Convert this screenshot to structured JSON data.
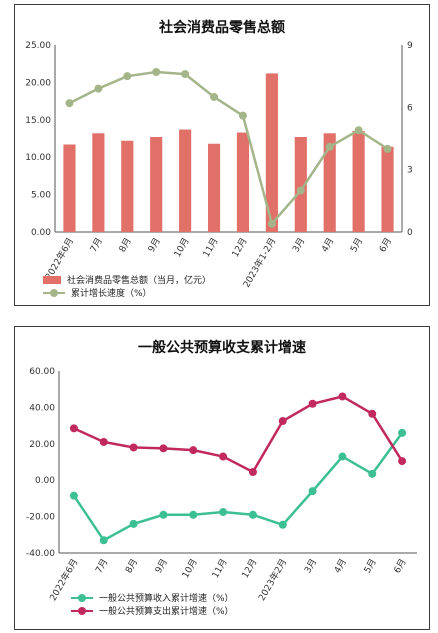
{
  "chart_data": [
    {
      "type": "bar",
      "title": "社会消费品零售总额",
      "categories": [
        "2022年6月",
        "7月",
        "8月",
        "9月",
        "10月",
        "11月",
        "12月",
        "2023年1-2月",
        "3月",
        "4月",
        "5月",
        "6月"
      ],
      "y_left_ticks": [
        "0.00",
        "5.00",
        "10.00",
        "15.00",
        "20.00",
        "25.00"
      ],
      "y_right_ticks": [
        "0",
        "3",
        "6",
        "9"
      ],
      "ylim_left": [
        0,
        25
      ],
      "ylim_right": [
        0,
        9
      ],
      "series": [
        {
          "name": "社会消费品零售总额（当月，亿元）",
          "kind": "bar",
          "axis": "left",
          "color": "#e07068",
          "values": [
            11.7,
            13.2,
            12.2,
            12.7,
            13.7,
            11.8,
            13.3,
            21.2,
            12.7,
            13.2,
            13.5,
            11.4
          ]
        },
        {
          "name": "累计增长速度（%）",
          "kind": "line",
          "axis": "right",
          "color": "#a5b58a",
          "values": [
            6.2,
            6.9,
            7.5,
            7.7,
            7.6,
            6.5,
            5.6,
            0.4,
            2.0,
            4.1,
            4.9,
            4.0
          ]
        }
      ],
      "grid": false,
      "legend_position": "bottom"
    },
    {
      "type": "line",
      "title": "一般公共预算收支累计增速",
      "categories": [
        "2022年6月",
        "7月",
        "8月",
        "9月",
        "10月",
        "11月",
        "12月",
        "2023年2月",
        "3月",
        "4月",
        "5月",
        "6月"
      ],
      "y_ticks": [
        "-40.00",
        "-20.00",
        "0.00",
        "20.00",
        "40.00",
        "60.00"
      ],
      "ylim": [
        -40,
        60
      ],
      "series": [
        {
          "name": "一般公共预算收入累计增速（%）",
          "color": "#3cbf93",
          "values": [
            -8.5,
            -33,
            -24,
            -19,
            -19,
            -17.5,
            -19,
            -24.5,
            -6,
            13,
            3.5,
            26
          ]
        },
        {
          "name": "一般公共预算支出累计增速（%）",
          "color": "#c0285e",
          "values": [
            28.5,
            21,
            18,
            17.5,
            16.5,
            13,
            4.5,
            32.5,
            42,
            46,
            36.5,
            10.5
          ]
        }
      ],
      "grid": false,
      "legend_position": "bottom"
    }
  ]
}
